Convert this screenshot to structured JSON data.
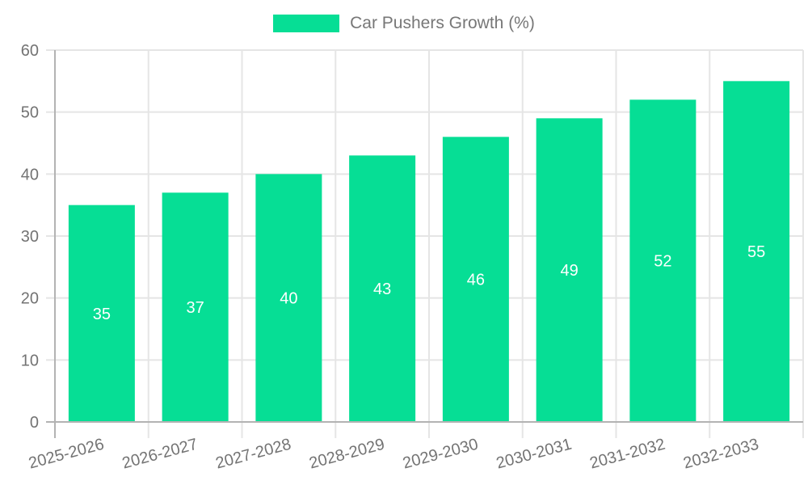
{
  "chart_data": {
    "type": "bar",
    "title": "Car Pushers Growth (%)",
    "series_name": "Car Pushers Growth (%)",
    "categories": [
      "2025-2026",
      "2026-2027",
      "2027-2028",
      "2028-2029",
      "2029-2030",
      "2030-2031",
      "2031-2032",
      "2032-2033"
    ],
    "values": [
      35,
      37,
      40,
      43,
      46,
      49,
      52,
      55
    ],
    "xlabel": "",
    "ylabel": "",
    "ylim": [
      0,
      60
    ],
    "ytick_step": 10,
    "yticks": [
      0,
      10,
      20,
      30,
      40,
      50,
      60
    ],
    "grid": true,
    "legend_position": "top",
    "value_labels_position": "inside-center",
    "x_label_rotation_deg": -15
  },
  "colors": {
    "background": "#FFFFFF",
    "bar": "#06DE95",
    "grid": "#E5E5E5",
    "axis": "#B3B3B3",
    "tick_label": "#737373",
    "legend_text": "#777777",
    "value_label": "#FFFFFF"
  }
}
